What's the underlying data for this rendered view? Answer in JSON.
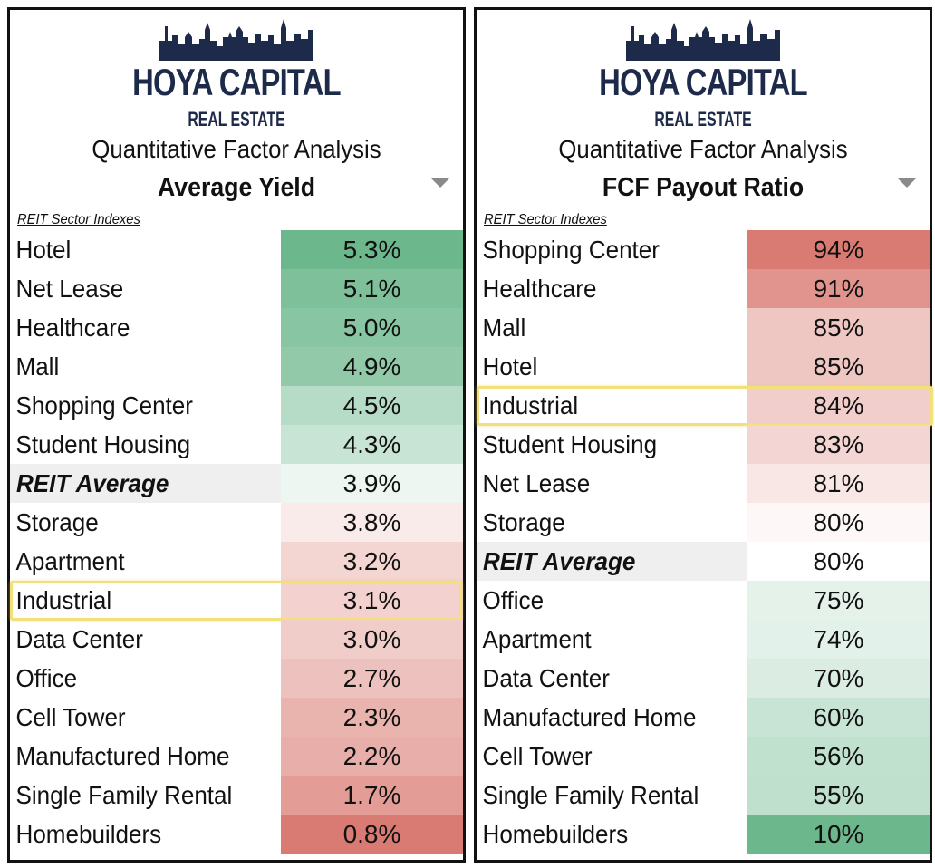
{
  "brand": {
    "name": "HOYA CAPITAL",
    "sub": "REAL ESTATE"
  },
  "colors": {
    "brand_navy": "#1d2a4a",
    "high_green": "#6cb78c",
    "low_red": "#d97b72",
    "neutral": "#ffffff",
    "highlight": "#f3e07a"
  },
  "chart_data": [
    {
      "type": "table",
      "title": "Quantitative Factor Analysis",
      "metric": "Average Yield",
      "subtitle": "REIT Sector Indexes",
      "categories": [
        "Hotel",
        "Net Lease",
        "Healthcare",
        "Mall",
        "Shopping Center",
        "Student Housing",
        "REIT Average",
        "Storage",
        "Apartment",
        "Industrial",
        "Data Center",
        "Office",
        "Cell Tower",
        "Manufactured Home",
        "Single Family Rental",
        "Homebuilders"
      ],
      "values": [
        5.3,
        5.1,
        5.0,
        4.9,
        4.5,
        4.3,
        3.9,
        3.8,
        3.2,
        3.1,
        3.0,
        2.7,
        2.3,
        2.2,
        1.7,
        0.8
      ],
      "value_labels": [
        "5.3%",
        "5.1%",
        "5.0%",
        "4.9%",
        "4.5%",
        "4.3%",
        "3.9%",
        "3.8%",
        "3.2%",
        "3.1%",
        "3.0%",
        "2.7%",
        "2.3%",
        "2.2%",
        "1.7%",
        "0.8%"
      ],
      "highlighted": "Industrial",
      "average_label": "REIT Average",
      "color_scale": "high-green"
    },
    {
      "type": "table",
      "title": "Quantitative Factor Analysis",
      "metric": "FCF Payout Ratio",
      "subtitle": "REIT Sector Indexes",
      "categories": [
        "Shopping Center",
        "Healthcare",
        "Mall",
        "Hotel",
        "Industrial",
        "Student Housing",
        "Net Lease",
        "Storage",
        "REIT Average",
        "Office",
        "Apartment",
        "Data Center",
        "Manufactured Home",
        "Cell Tower",
        "Single Family Rental",
        "Homebuilders"
      ],
      "values": [
        94,
        91,
        85,
        85,
        84,
        83,
        81,
        80,
        80,
        75,
        74,
        70,
        60,
        56,
        55,
        10
      ],
      "value_labels": [
        "94%",
        "91%",
        "85%",
        "85%",
        "84%",
        "83%",
        "81%",
        "80%",
        "80%",
        "75%",
        "74%",
        "70%",
        "60%",
        "56%",
        "55%",
        "10%"
      ],
      "highlighted": "Industrial",
      "average_label": "REIT Average",
      "color_scale": "high-red"
    }
  ]
}
